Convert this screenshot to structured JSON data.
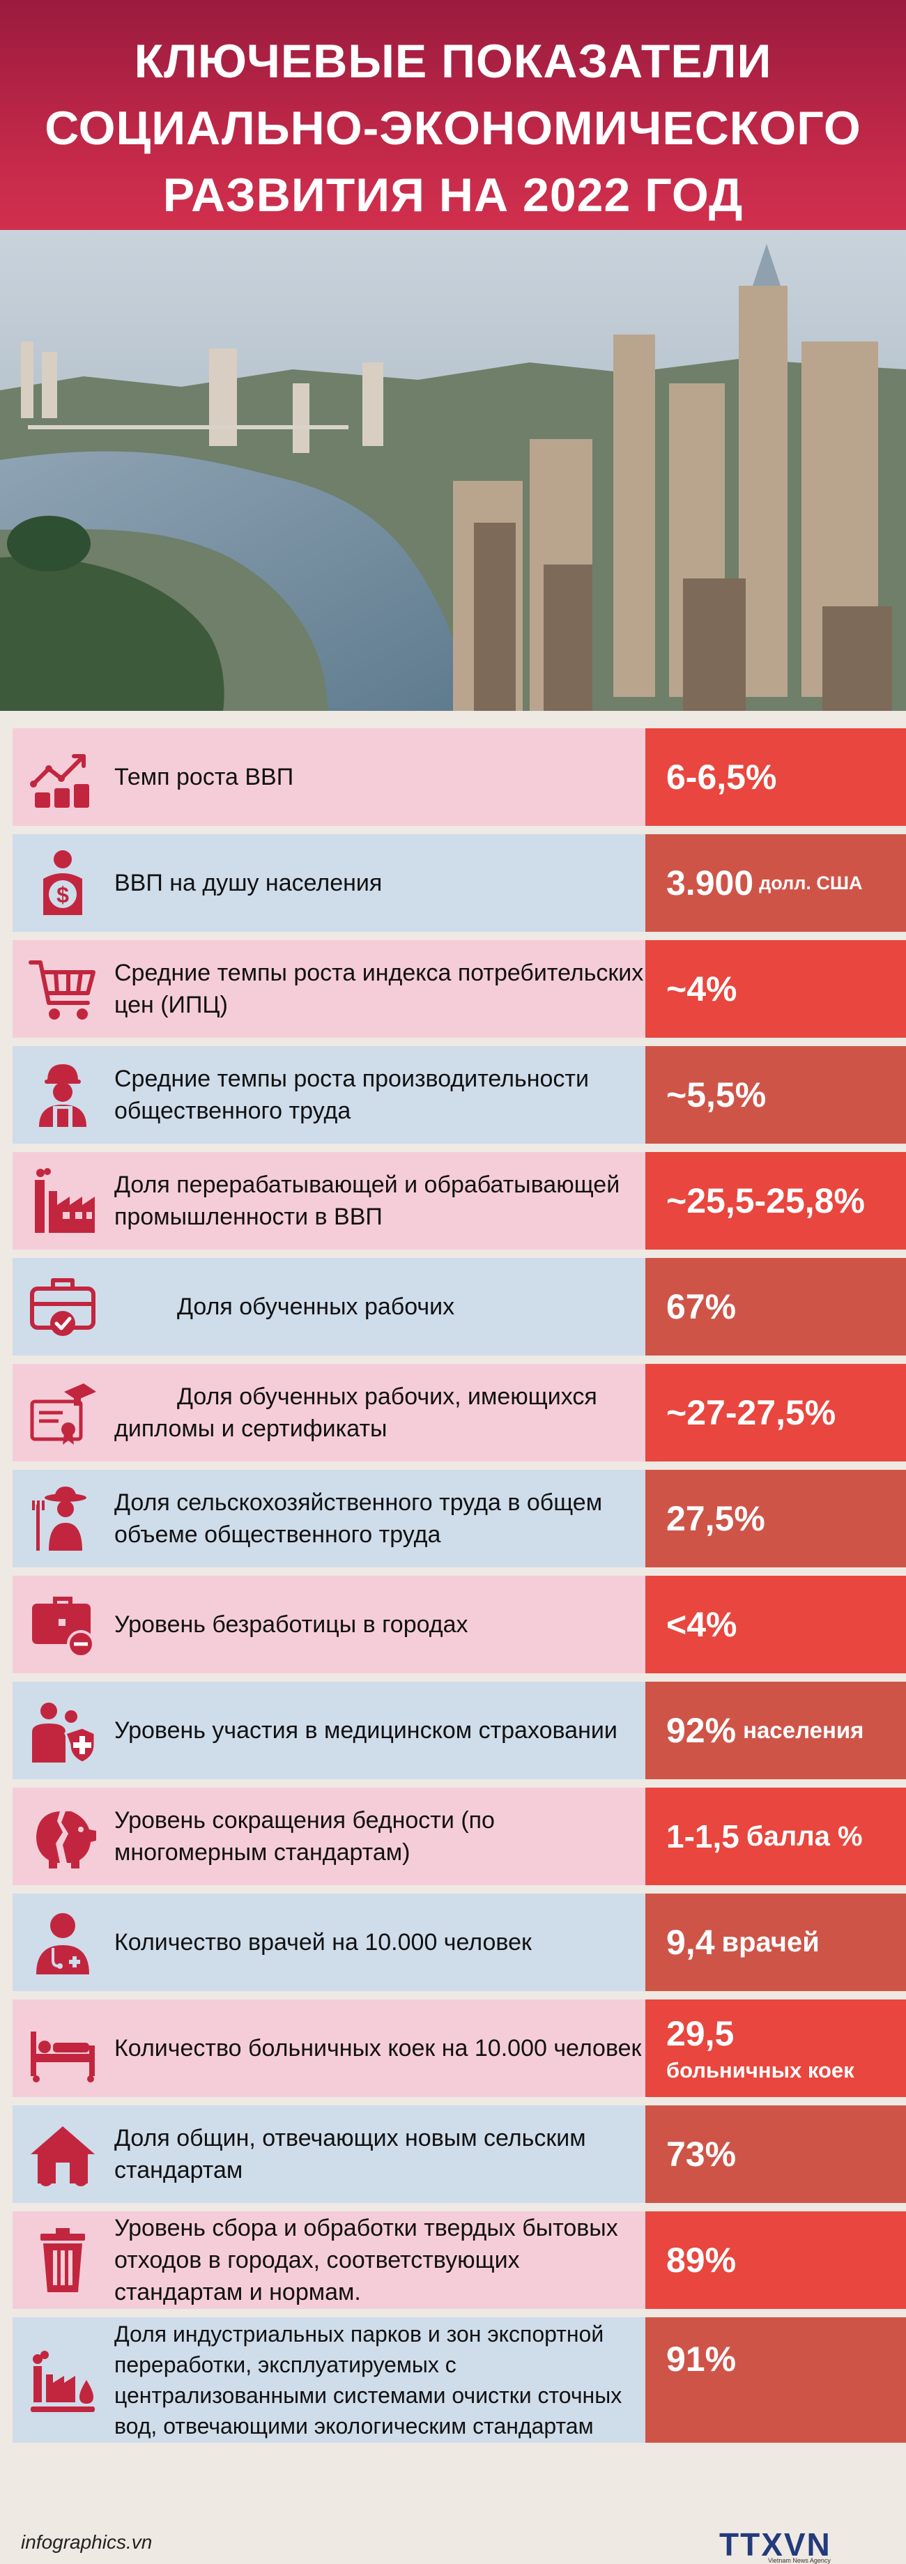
{
  "header": {
    "title_line1": "КЛЮЧЕВЫЕ ПОКАЗАТЕЛИ",
    "title_line2": "СОЦИАЛЬНО-ЭКОНОМИЧЕСКОГО",
    "title_line3": "РАЗВИТИЯ НА 2022 ГОД"
  },
  "colors": {
    "header": "#c72a4a",
    "pink_row": "#f5cdd8",
    "blue_row": "#cfdcea",
    "value_red": "#e8463e",
    "value_red_dark": "#cf5448",
    "icon": "#c2263f"
  },
  "rows": [
    {
      "label": "Темп роста ВВП",
      "value": "6-6,5%",
      "unit": "",
      "icon": "growth-chart-icon"
    },
    {
      "label": "ВВП на душу населения",
      "value": "3.900",
      "unit": "долл. США",
      "icon": "money-person-icon"
    },
    {
      "label": "Средние темпы роста индекса потребительских цен (ИПЦ)",
      "value": "~4%",
      "unit": "",
      "icon": "shopping-cart-icon"
    },
    {
      "label": "Средние темпы роста производительности общественного труда",
      "value": "~5,5%",
      "unit": "",
      "icon": "worker-icon"
    },
    {
      "label": "Доля перерабатывающей и обрабатывающей промышленности в ВВП",
      "value": "~25,5-25,8%",
      "unit": "",
      "icon": "factory-icon"
    },
    {
      "label": "Доля обученных рабочих",
      "value": "67%",
      "unit": "",
      "icon": "toolbox-check-icon"
    },
    {
      "label": "Доля обученных рабочих, имеющихся дипломы и сертификаты",
      "value": "~27-27,5%",
      "unit": "",
      "icon": "diploma-icon"
    },
    {
      "label": "Доля сельскохозяйственного труда в общем объеме общественного труда",
      "value": "27,5%",
      "unit": "",
      "icon": "farmer-icon"
    },
    {
      "label": "Уровень безработицы в городах",
      "value": "<4%",
      "unit": "",
      "icon": "briefcase-no-icon"
    },
    {
      "label": "Уровень участия в медицинском страховании",
      "value": "92%",
      "unit": "населения",
      "icon": "health-insurance-icon"
    },
    {
      "label": "Уровень сокращения бедности (по многомерным стандартам)",
      "value": "1-1,5",
      "unit": "балла %",
      "icon": "broken-piggy-icon"
    },
    {
      "label": "Количество врачей на 10.000 человек",
      "value": "9,4",
      "unit": "врачей",
      "icon": "doctor-icon"
    },
    {
      "label": "Количество больничных коек на 10.000 человек",
      "value": "29,5",
      "unit": "больничных коек",
      "icon": "hospital-bed-icon"
    },
    {
      "label": "Доля общин, отвечающих новым сельским стандартам",
      "value": "73%",
      "unit": "",
      "icon": "house-icon"
    },
    {
      "label": "Уровень сбора и обработки твердых бытовых отходов в городах, соответствующих стандартам и нормам.",
      "value": "89%",
      "unit": "",
      "icon": "trash-bin-icon"
    },
    {
      "label": "Доля индустриальных парков и зон экспортной переработки, эксплуатируемых с централизованными системами очистки сточных вод, отвечающими экологическим стандартам",
      "value": "91%",
      "unit": "",
      "icon": "industrial-water-icon"
    }
  ],
  "footer": {
    "site": "infographics.vn",
    "logo": "TTXVN",
    "logo_sub": "Vietnam News Agency"
  }
}
